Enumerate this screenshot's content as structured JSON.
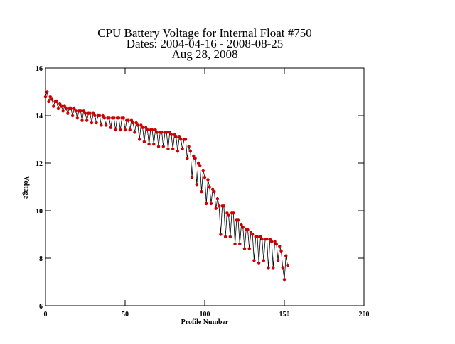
{
  "chart_data": {
    "type": "line",
    "title": [
      "CPU Battery Voltage for Internal Float #750",
      "Dates:  2004-04-16 -  2008-08-25",
      "Aug 28, 2008"
    ],
    "xlabel": "Profile Number",
    "ylabel": "Voltage",
    "xlim": [
      0,
      200
    ],
    "ylim": [
      6,
      16
    ],
    "xticks": [
      0,
      50,
      100,
      150,
      200
    ],
    "yticks": [
      6,
      8,
      10,
      12,
      14,
      16
    ],
    "line_color": "#000000",
    "marker_color": "#cc0000",
    "x": [
      0,
      1,
      2,
      3,
      4,
      5,
      6,
      7,
      8,
      9,
      10,
      11,
      12,
      13,
      14,
      15,
      16,
      17,
      18,
      19,
      20,
      21,
      22,
      23,
      24,
      25,
      26,
      27,
      28,
      29,
      30,
      31,
      32,
      33,
      34,
      35,
      36,
      37,
      38,
      39,
      40,
      41,
      42,
      43,
      44,
      45,
      46,
      47,
      48,
      49,
      50,
      51,
      52,
      53,
      54,
      55,
      56,
      57,
      58,
      59,
      60,
      61,
      62,
      63,
      64,
      65,
      66,
      67,
      68,
      69,
      70,
      71,
      72,
      73,
      74,
      75,
      76,
      77,
      78,
      79,
      80,
      81,
      82,
      83,
      84,
      85,
      86,
      87,
      88,
      89,
      90,
      91,
      92,
      93,
      94,
      95,
      96,
      97,
      98,
      99,
      100,
      101,
      102,
      103,
      104,
      105,
      106,
      107,
      108,
      109,
      110,
      111,
      112,
      113,
      114,
      115,
      116,
      117,
      118,
      119,
      120,
      121,
      122,
      123,
      124,
      125,
      126,
      127,
      128,
      129,
      130,
      131,
      132,
      133,
      134,
      135,
      136,
      137,
      138,
      139,
      140,
      141,
      142,
      143,
      144,
      145,
      146,
      147,
      148,
      149,
      150,
      151,
      152
    ],
    "values": [
      14.8,
      15.0,
      14.6,
      14.8,
      14.7,
      14.4,
      14.6,
      14.6,
      14.3,
      14.5,
      14.4,
      14.2,
      14.4,
      14.3,
      14.1,
      14.3,
      14.3,
      14.0,
      14.3,
      14.2,
      13.9,
      14.2,
      14.2,
      13.8,
      14.2,
      14.1,
      13.8,
      14.1,
      14.1,
      13.7,
      14.1,
      14.0,
      13.7,
      14.0,
      14.0,
      13.6,
      14.0,
      13.9,
      13.6,
      13.9,
      13.9,
      13.5,
      13.9,
      13.9,
      13.4,
      13.9,
      13.9,
      13.4,
      13.9,
      13.9,
      13.4,
      13.8,
      13.8,
      13.4,
      13.8,
      13.7,
      13.3,
      13.7,
      13.6,
      13.0,
      13.6,
      13.5,
      12.9,
      13.5,
      13.4,
      12.8,
      13.4,
      13.4,
      12.8,
      13.4,
      13.3,
      12.7,
      13.3,
      13.3,
      12.7,
      13.3,
      13.3,
      12.6,
      13.3,
      13.2,
      12.6,
      13.2,
      13.1,
      12.5,
      13.1,
      13.0,
      12.6,
      13.0,
      13.0,
      12.2,
      12.7,
      12.5,
      11.4,
      12.3,
      12.2,
      11.1,
      12.0,
      11.9,
      10.8,
      11.7,
      11.4,
      10.3,
      11.3,
      11.0,
      10.3,
      10.9,
      10.8,
      10.1,
      10.5,
      10.2,
      9.0,
      10.2,
      10.2,
      8.9,
      9.9,
      9.8,
      8.9,
      9.9,
      9.9,
      8.6,
      9.6,
      9.6,
      8.6,
      9.4,
      9.3,
      8.4,
      9.2,
      9.2,
      8.4,
      9.1,
      9.0,
      7.9,
      8.9,
      8.9,
      7.8,
      8.9,
      8.8,
      7.9,
      8.8,
      8.8,
      7.6,
      8.8,
      8.7,
      7.6,
      8.7,
      8.6,
      7.9,
      8.5,
      8.3,
      7.6,
      7.1,
      8.1,
      7.7
    ]
  }
}
